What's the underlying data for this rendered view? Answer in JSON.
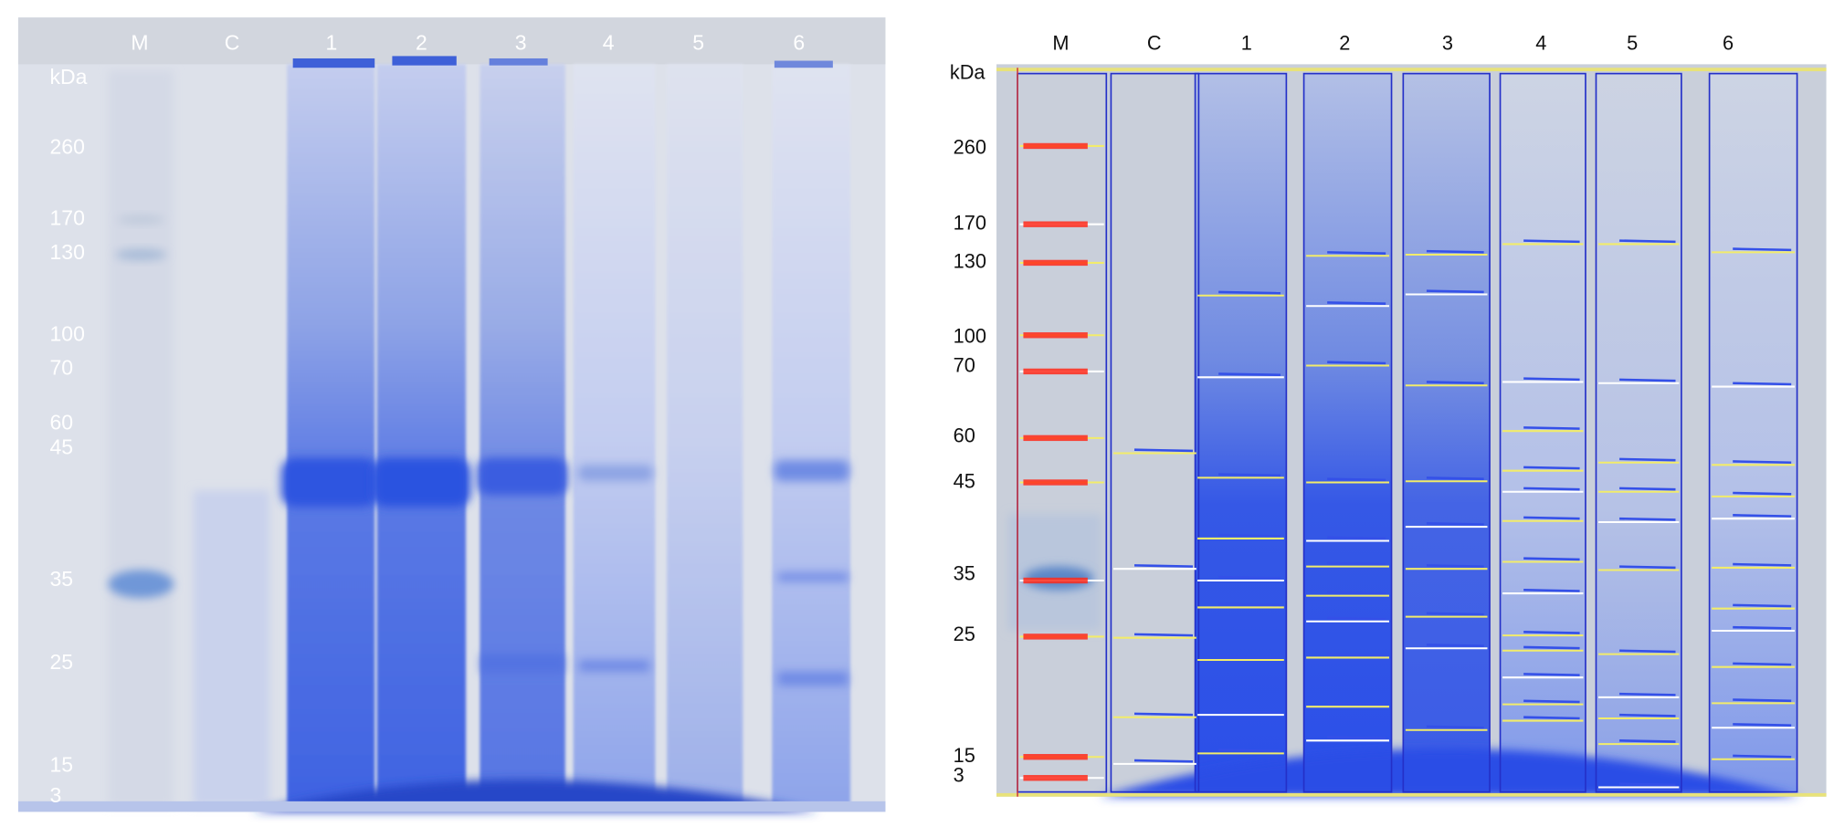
{
  "panels": [
    {
      "lanes": [
        "M",
        "C",
        "1",
        "2",
        "3",
        "4",
        "5",
        "6"
      ],
      "unit": "kDa",
      "markers": [
        "260",
        "170",
        "130",
        "100",
        "70",
        "60",
        "45",
        "35",
        "25",
        "15",
        "3"
      ]
    },
    {
      "lanes": [
        "M",
        "C",
        "1",
        "2",
        "3",
        "4",
        "5",
        "6"
      ],
      "unit": "kDa",
      "markers": [
        "260",
        "170",
        "130",
        "100",
        "70",
        "60",
        "45",
        "35",
        "25",
        "15",
        "3"
      ]
    }
  ]
}
